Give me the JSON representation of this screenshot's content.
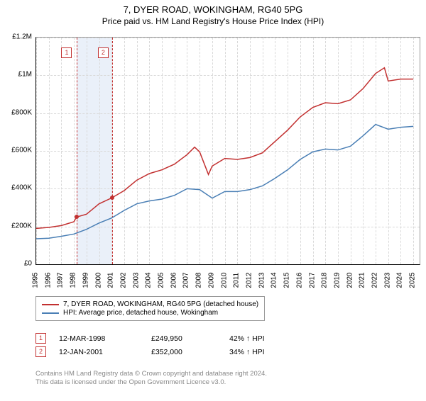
{
  "title": "7, DYER ROAD, WOKINGHAM, RG40 5PG",
  "subtitle": "Price paid vs. HM Land Registry's House Price Index (HPI)",
  "chart": {
    "type": "line",
    "x_start": 1995,
    "x_end": 2025.5,
    "y_start": 0,
    "y_end": 1200000,
    "ylabels": [
      "£0",
      "£200K",
      "£400K",
      "£600K",
      "£800K",
      "£1M",
      "£1.2M"
    ],
    "yticks": [
      0,
      200000,
      400000,
      600000,
      800000,
      1000000,
      1200000
    ],
    "xticks": [
      1995,
      1996,
      1997,
      1998,
      1999,
      2000,
      2001,
      2002,
      2003,
      2004,
      2005,
      2006,
      2007,
      2008,
      2009,
      2010,
      2011,
      2012,
      2013,
      2014,
      2015,
      2016,
      2017,
      2018,
      2019,
      2020,
      2021,
      2022,
      2023,
      2024,
      2025
    ],
    "background_color": "#ffffff",
    "grid_color": "#d9d9d9",
    "highlight_band": {
      "start": 1998.2,
      "end": 2001.03,
      "color": "#eaf0f9"
    },
    "highlight_lines": [
      {
        "x": 1998.2,
        "color": "#c23030"
      },
      {
        "x": 2001.03,
        "color": "#c23030"
      }
    ],
    "series": [
      {
        "name": "property",
        "label": "7, DYER ROAD, WOKINGHAM, RG40 5PG (detached house)",
        "color": "#c23030",
        "values": [
          [
            1995,
            190000
          ],
          [
            1996,
            195000
          ],
          [
            1997,
            205000
          ],
          [
            1998,
            225000
          ],
          [
            1998.2,
            249950
          ],
          [
            1999,
            265000
          ],
          [
            2000,
            320000
          ],
          [
            2001.03,
            352000
          ],
          [
            2002,
            390000
          ],
          [
            2003,
            445000
          ],
          [
            2004,
            480000
          ],
          [
            2005,
            500000
          ],
          [
            2006,
            530000
          ],
          [
            2007,
            580000
          ],
          [
            2007.6,
            620000
          ],
          [
            2008,
            595000
          ],
          [
            2008.7,
            475000
          ],
          [
            2009,
            520000
          ],
          [
            2010,
            560000
          ],
          [
            2011,
            555000
          ],
          [
            2012,
            565000
          ],
          [
            2013,
            590000
          ],
          [
            2014,
            650000
          ],
          [
            2015,
            710000
          ],
          [
            2016,
            780000
          ],
          [
            2017,
            830000
          ],
          [
            2018,
            855000
          ],
          [
            2019,
            850000
          ],
          [
            2020,
            870000
          ],
          [
            2021,
            930000
          ],
          [
            2022,
            1010000
          ],
          [
            2022.7,
            1040000
          ],
          [
            2023,
            970000
          ],
          [
            2024,
            980000
          ],
          [
            2025,
            980000
          ]
        ],
        "markers": [
          {
            "x": 1998.2,
            "y": 249950
          },
          {
            "x": 2001.03,
            "y": 352000
          }
        ]
      },
      {
        "name": "hpi",
        "label": "HPI: Average price, detached house, Wokingham",
        "color": "#4a7fb5",
        "values": [
          [
            1995,
            135000
          ],
          [
            1996,
            138000
          ],
          [
            1997,
            148000
          ],
          [
            1998,
            160000
          ],
          [
            1999,
            185000
          ],
          [
            2000,
            218000
          ],
          [
            2001,
            245000
          ],
          [
            2002,
            285000
          ],
          [
            2003,
            320000
          ],
          [
            2004,
            335000
          ],
          [
            2005,
            345000
          ],
          [
            2006,
            365000
          ],
          [
            2007,
            400000
          ],
          [
            2008,
            395000
          ],
          [
            2009,
            350000
          ],
          [
            2010,
            385000
          ],
          [
            2011,
            385000
          ],
          [
            2012,
            395000
          ],
          [
            2013,
            415000
          ],
          [
            2014,
            455000
          ],
          [
            2015,
            500000
          ],
          [
            2016,
            555000
          ],
          [
            2017,
            595000
          ],
          [
            2018,
            610000
          ],
          [
            2019,
            605000
          ],
          [
            2020,
            625000
          ],
          [
            2021,
            680000
          ],
          [
            2022,
            740000
          ],
          [
            2023,
            715000
          ],
          [
            2024,
            725000
          ],
          [
            2025,
            730000
          ]
        ]
      }
    ]
  },
  "marker_boxes": [
    {
      "n": "1",
      "x": 1997.4,
      "color": "#c23030"
    },
    {
      "n": "2",
      "x": 2000.3,
      "color": "#c23030"
    }
  ],
  "legend": {
    "items": [
      {
        "label": "7, DYER ROAD, WOKINGHAM, RG40 5PG (detached house)",
        "color": "#c23030"
      },
      {
        "label": "HPI: Average price, detached house, Wokingham",
        "color": "#4a7fb5"
      }
    ]
  },
  "events": [
    {
      "n": "1",
      "color": "#c23030",
      "date": "12-MAR-1998",
      "price": "£249,950",
      "pct": "42% ↑ HPI"
    },
    {
      "n": "2",
      "color": "#c23030",
      "date": "12-JAN-2001",
      "price": "£352,000",
      "pct": "34% ↑ HPI"
    }
  ],
  "attribution": {
    "line1": "Contains HM Land Registry data © Crown copyright and database right 2024.",
    "line2": "This data is licensed under the Open Government Licence v3.0."
  }
}
